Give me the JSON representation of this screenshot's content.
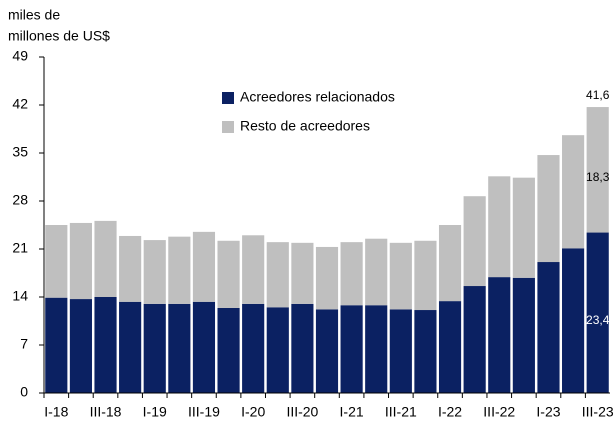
{
  "chart_data": {
    "type": "stacked_bar",
    "ylabel": [
      "miles de",
      "millones de US$"
    ],
    "categories": [
      "I-18",
      null,
      "III-18",
      null,
      "I-19",
      null,
      "III-19",
      null,
      "I-20",
      null,
      "III-20",
      null,
      "I-21",
      null,
      "III-21",
      null,
      "I-22",
      null,
      "III-22",
      null,
      "I-23",
      null,
      "III-23"
    ],
    "series": [
      {
        "name": "Acreedores relacionados",
        "color": "#0b2162",
        "values": [
          13.9,
          13.7,
          14.0,
          13.3,
          13.0,
          13.0,
          13.3,
          12.4,
          13.0,
          12.5,
          13.0,
          12.2,
          12.8,
          12.8,
          12.2,
          12.1,
          13.4,
          15.6,
          16.9,
          16.8,
          19.1,
          21.1,
          23.4
        ],
        "value_labels": [
          null,
          null,
          null,
          null,
          null,
          null,
          null,
          null,
          null,
          null,
          null,
          null,
          null,
          null,
          null,
          null,
          null,
          null,
          null,
          null,
          null,
          null,
          "23,4"
        ]
      },
      {
        "name": "Resto de acreedores",
        "color": "#bfbfbf",
        "values": [
          10.6,
          11.1,
          11.1,
          9.6,
          9.3,
          9.8,
          10.2,
          9.8,
          10.0,
          9.5,
          8.9,
          9.1,
          9.2,
          9.7,
          9.7,
          10.1,
          11.1,
          13.1,
          14.7,
          14.6,
          15.6,
          16.5,
          18.3
        ],
        "value_labels": [
          null,
          null,
          null,
          null,
          null,
          null,
          null,
          null,
          null,
          null,
          null,
          null,
          null,
          null,
          null,
          null,
          null,
          null,
          null,
          null,
          null,
          null,
          "18,3"
        ]
      }
    ],
    "total_label": {
      "index": 22,
      "value": 41.6,
      "label": "41,6"
    },
    "ylim": [
      0,
      49
    ],
    "yticks": [
      0,
      7,
      14,
      21,
      28,
      35,
      42,
      49
    ],
    "grid": false
  }
}
